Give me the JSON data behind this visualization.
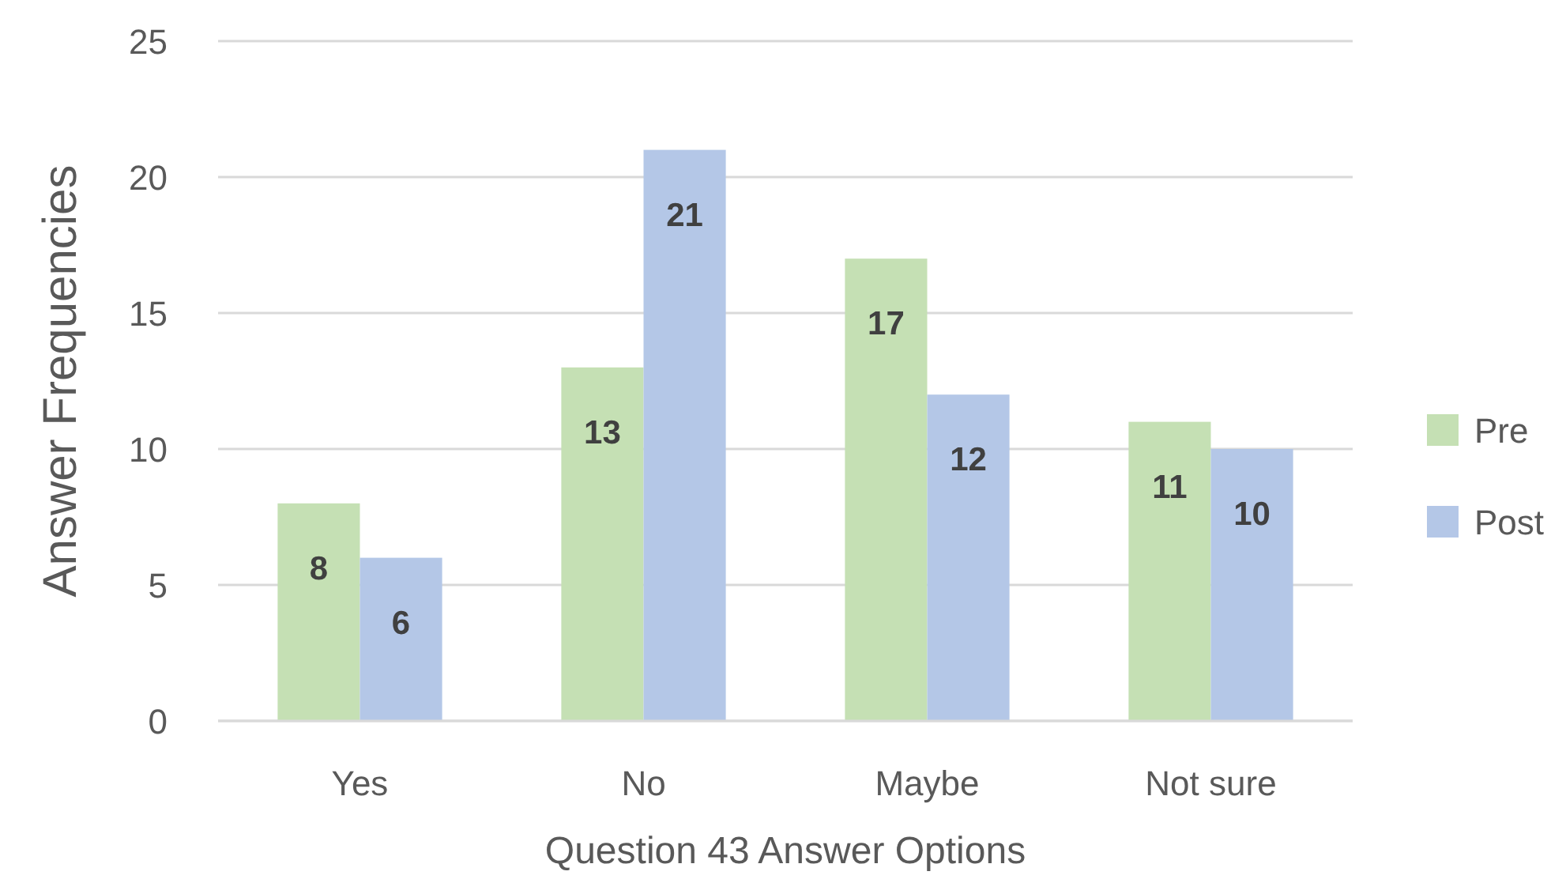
{
  "chart_data": {
    "type": "bar",
    "xlabel": "Question 43 Answer Options",
    "ylabel": "Answer Frequencies",
    "categories": [
      "Yes",
      "No",
      "Maybe",
      "Not sure"
    ],
    "series": [
      {
        "name": "Pre",
        "color": "#c5e0b4",
        "values": [
          8,
          13,
          17,
          11
        ]
      },
      {
        "name": "Post",
        "color": "#b4c7e7",
        "values": [
          6,
          21,
          12,
          10
        ]
      }
    ],
    "ylim": [
      0,
      25
    ],
    "yticks": [
      0,
      5,
      10,
      15,
      20,
      25
    ],
    "grid": "y",
    "legend": "right",
    "data_labels": true
  }
}
